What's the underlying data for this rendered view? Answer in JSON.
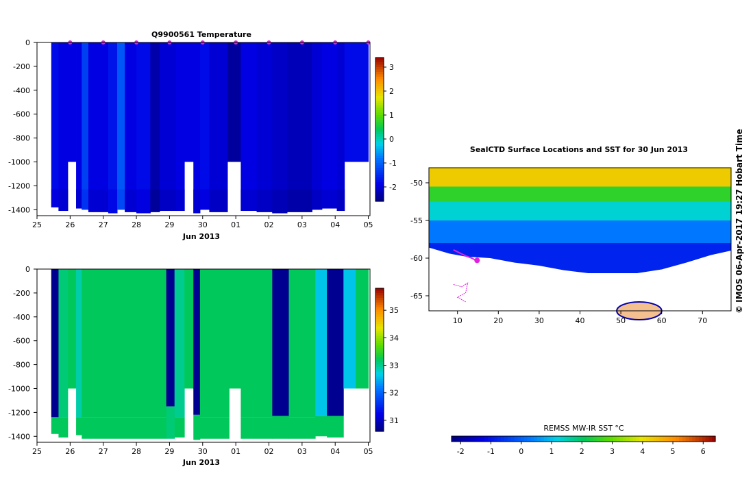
{
  "panels": {
    "temperature": {
      "title": "Q9900561  Temperature",
      "xlabel": "Jun 2013",
      "x_ticks": [
        "25",
        "26",
        "27",
        "28",
        "29",
        "30",
        "01",
        "02",
        "03",
        "04",
        "05"
      ],
      "y_ticks": [
        "0",
        "-200",
        "-400",
        "-600",
        "-800",
        "-1000",
        "-1200",
        "-1400"
      ],
      "colorbar_ticks": [
        "3",
        "2",
        "1",
        "0",
        "-1",
        "-2"
      ]
    },
    "salinity": {
      "xlabel": "Jun 2013",
      "x_ticks": [
        "25",
        "26",
        "27",
        "28",
        "29",
        "30",
        "01",
        "02",
        "03",
        "04",
        "05"
      ],
      "y_ticks": [
        "0",
        "-200",
        "-400",
        "-600",
        "-800",
        "-1000",
        "-1200",
        "-1400"
      ],
      "colorbar_ticks": [
        "35",
        "34",
        "33",
        "32",
        "31"
      ]
    },
    "map": {
      "title": "SealCTD Surface Locations and SST for 30 Jun 2013",
      "lon_ticks": [
        "10",
        "20",
        "30",
        "40",
        "50",
        "60",
        "70"
      ],
      "lat_ticks": [
        "-50",
        "-55",
        "-60",
        "-65"
      ],
      "colorbar_label": "REMSS MW-IR SST °C",
      "colorbar_ticks": [
        "-2",
        "-1",
        "0",
        "1",
        "2",
        "3",
        "4",
        "5",
        "6"
      ]
    },
    "credit": "© IMOS 06-Apr-2017 19:27 Hobart Time"
  },
  "chart_data": [
    {
      "type": "heatmap",
      "title": "Q9900561  Temperature",
      "xlabel": "Jun 2013",
      "ylabel": "",
      "xlim": [
        25,
        35
      ],
      "ylim": [
        -1450,
        0
      ],
      "colorbar_range": [
        -2.6,
        3.4
      ],
      "profiles": [
        {
          "x0": 25.43,
          "x1": 25.65,
          "bottom": -1380,
          "temp": -1.8
        },
        {
          "x0": 25.65,
          "x1": 25.93,
          "bottom": -1410,
          "temp": -1.9
        },
        {
          "x0": 25.93,
          "x1": 26.18,
          "bottom": -1000,
          "temp": -1.9
        },
        {
          "x0": 26.18,
          "x1": 26.35,
          "bottom": -1390,
          "temp": -1.9
        },
        {
          "x0": 26.35,
          "x1": 26.55,
          "bottom": -1400,
          "temp": -1.3
        },
        {
          "x0": 26.55,
          "x1": 27.15,
          "bottom": -1420,
          "temp": -1.9
        },
        {
          "x0": 27.15,
          "x1": 27.42,
          "bottom": -1430,
          "temp": -1.7
        },
        {
          "x0": 27.42,
          "x1": 27.65,
          "bottom": -1400,
          "temp": -1.1
        },
        {
          "x0": 27.65,
          "x1": 28.0,
          "bottom": -1420,
          "temp": -1.9
        },
        {
          "x0": 28.0,
          "x1": 28.42,
          "bottom": -1430,
          "temp": -1.8
        },
        {
          "x0": 28.42,
          "x1": 28.7,
          "bottom": -1420,
          "temp": -2.3
        },
        {
          "x0": 28.7,
          "x1": 29.2,
          "bottom": -1410,
          "temp": -2.0
        },
        {
          "x0": 29.2,
          "x1": 29.45,
          "bottom": -1410,
          "temp": -1.9
        },
        {
          "x0": 29.45,
          "x1": 29.72,
          "bottom": -1000,
          "temp": -1.9
        },
        {
          "x0": 29.72,
          "x1": 29.92,
          "bottom": -1430,
          "temp": -1.9
        },
        {
          "x0": 29.92,
          "x1": 30.2,
          "bottom": -1400,
          "temp": -1.8
        },
        {
          "x0": 30.2,
          "x1": 30.75,
          "bottom": -1420,
          "temp": -2.0
        },
        {
          "x0": 30.75,
          "x1": 31.15,
          "bottom": -1000,
          "temp": -2.4
        },
        {
          "x0": 31.15,
          "x1": 31.63,
          "bottom": -1410,
          "temp": -1.9
        },
        {
          "x0": 31.63,
          "x1": 32.1,
          "bottom": -1420,
          "temp": -2.0
        },
        {
          "x0": 32.1,
          "x1": 32.55,
          "bottom": -1430,
          "temp": -2.1
        },
        {
          "x0": 32.55,
          "x1": 33.3,
          "bottom": -1420,
          "temp": -2.2
        },
        {
          "x0": 33.3,
          "x1": 33.6,
          "bottom": -1400,
          "temp": -2.0
        },
        {
          "x0": 33.6,
          "x1": 34.05,
          "bottom": -1390,
          "temp": -1.9
        },
        {
          "x0": 34.05,
          "x1": 34.28,
          "bottom": -1410,
          "temp": -2.0
        },
        {
          "x0": 34.28,
          "x1": 35.0,
          "bottom": -1000,
          "temp": -1.8
        }
      ],
      "surface_markers": [
        26.0,
        27.0,
        28.0,
        29.0,
        30.0,
        31.0,
        32.0,
        33.0,
        34.0,
        35.0
      ]
    },
    {
      "type": "heatmap",
      "title": "",
      "xlabel": "Jun 2013",
      "ylabel": "",
      "xlim": [
        25,
        35
      ],
      "ylim": [
        -1450,
        0
      ],
      "colorbar_range": [
        30.6,
        35.8
      ],
      "profiles": [
        {
          "x0": 25.43,
          "x1": 25.65,
          "bottom": -1380,
          "top_value": 30.7,
          "deep_value": 33.2,
          "split": -1240
        },
        {
          "x0": 25.65,
          "x1": 25.93,
          "bottom": -1410,
          "top_value": 33.1,
          "deep_value": 33.2,
          "split": -1240
        },
        {
          "x0": 25.93,
          "x1": 26.18,
          "bottom": -1000,
          "top_value": 33.2,
          "deep_value": 33.2,
          "split": -1000
        },
        {
          "x0": 26.18,
          "x1": 26.35,
          "bottom": -1390,
          "top_value": 32.9,
          "deep_value": 33.2,
          "split": -1240
        },
        {
          "x0": 26.35,
          "x1": 28.9,
          "bottom": -1420,
          "top_value": 33.2,
          "deep_value": 33.2,
          "split": -1240
        },
        {
          "x0": 28.9,
          "x1": 29.15,
          "bottom": -1420,
          "top_value": 30.7,
          "deep_value": 33.1,
          "split": -1150
        },
        {
          "x0": 29.15,
          "x1": 29.45,
          "bottom": -1410,
          "top_value": 33.0,
          "deep_value": 33.2,
          "split": -1240
        },
        {
          "x0": 29.45,
          "x1": 29.72,
          "bottom": -1000,
          "top_value": 33.2,
          "deep_value": 33.2,
          "split": -1000
        },
        {
          "x0": 29.72,
          "x1": 29.92,
          "bottom": -1430,
          "top_value": 30.7,
          "deep_value": 33.2,
          "split": -1220
        },
        {
          "x0": 29.92,
          "x1": 30.8,
          "bottom": -1420,
          "top_value": 33.2,
          "deep_value": 33.2,
          "split": -1240
        },
        {
          "x0": 30.8,
          "x1": 31.15,
          "bottom": -1000,
          "top_value": 33.2,
          "deep_value": 33.2,
          "split": -1000
        },
        {
          "x0": 31.15,
          "x1": 32.1,
          "bottom": -1420,
          "top_value": 33.2,
          "deep_value": 33.2,
          "split": -1240
        },
        {
          "x0": 32.1,
          "x1": 32.6,
          "bottom": -1420,
          "top_value": 30.7,
          "deep_value": 33.2,
          "split": -1230
        },
        {
          "x0": 32.6,
          "x1": 33.4,
          "bottom": -1420,
          "top_value": 33.2,
          "deep_value": 33.2,
          "split": -1240
        },
        {
          "x0": 33.4,
          "x1": 33.75,
          "bottom": -1400,
          "top_value": 32.6,
          "deep_value": 33.2,
          "split": -1230
        },
        {
          "x0": 33.75,
          "x1": 34.25,
          "bottom": -1410,
          "top_value": 30.7,
          "deep_value": 33.2,
          "split": -1230
        },
        {
          "x0": 34.25,
          "x1": 34.62,
          "bottom": -1000,
          "top_value": 32.6,
          "deep_value": 32.6,
          "split": -1000
        },
        {
          "x0": 34.62,
          "x1": 35.0,
          "bottom": -1000,
          "top_value": 33.2,
          "deep_value": 33.2,
          "split": -1000
        }
      ]
    },
    {
      "type": "heatmap",
      "title": "SealCTD Surface Locations and SST for 30 Jun 2013",
      "xlabel": "",
      "ylabel": "",
      "xlim": [
        3,
        77
      ],
      "ylim": [
        -67,
        -48
      ],
      "colorbar_label": "REMSS MW-IR SST °C",
      "colorbar_range": [
        -2.3,
        6.4
      ],
      "sst_bands": [
        {
          "lat_top": -48,
          "lat_bottom": -50.5,
          "sst": 4.3
        },
        {
          "lat_top": -50.5,
          "lat_bottom": -52.5,
          "sst": 2.5
        },
        {
          "lat_top": -52.5,
          "lat_bottom": -55,
          "sst": 1.3
        },
        {
          "lat_top": -55,
          "lat_bottom": -58,
          "sst": 0.3
        },
        {
          "lat_top": -58,
          "lat_bottom": -62,
          "sst": -0.8
        }
      ],
      "ice_edge": [
        [
          3,
          -58.6
        ],
        [
          8,
          -59.4
        ],
        [
          12,
          -59.8
        ],
        [
          18,
          -60.0
        ],
        [
          24,
          -60.6
        ],
        [
          30,
          -61.0
        ],
        [
          36,
          -61.6
        ],
        [
          42,
          -62.0
        ],
        [
          48,
          -62.2
        ],
        [
          54,
          -62.0
        ],
        [
          60,
          -61.5
        ],
        [
          66,
          -60.6
        ],
        [
          72,
          -59.6
        ],
        [
          77,
          -59.0
        ]
      ],
      "track": [
        [
          9,
          -58.9
        ],
        [
          10.5,
          -59.3
        ],
        [
          12,
          -59.7
        ],
        [
          13.5,
          -60.0
        ],
        [
          14.5,
          -60.3
        ]
      ],
      "track_thin": [
        [
          9,
          -63.5
        ],
        [
          11,
          -63.8
        ],
        [
          12.5,
          -63.3
        ],
        [
          12,
          -64.6
        ],
        [
          10,
          -65.2
        ],
        [
          12,
          -65.8
        ]
      ],
      "last_position": [
        14.8,
        -60.3
      ],
      "continent_lon_range": [
        49,
        60
      ]
    }
  ]
}
